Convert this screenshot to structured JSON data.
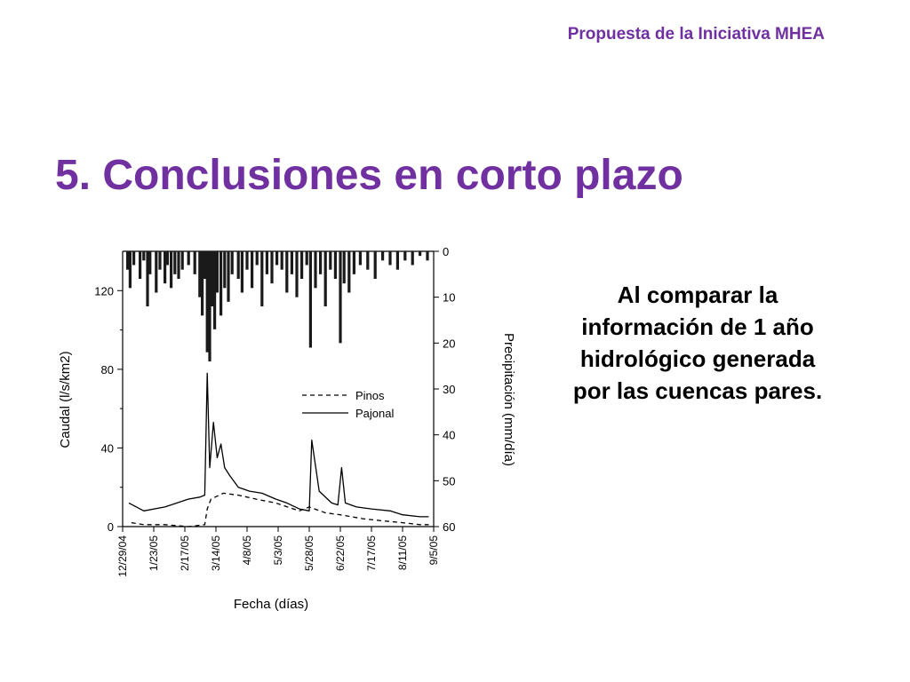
{
  "header": {
    "text": "Propuesta de la Iniciativa MHEA",
    "color": "#7030a0"
  },
  "slide": {
    "title": "5. Conclusiones en corto plazo",
    "body": "Al comparar la información de 1 año hidrológico generada por las cuencas pares."
  },
  "chart_data": {
    "type": "line",
    "xlabel": "Fecha (días)",
    "ylabel": "Caudal (l/s/km2)",
    "y2label": "Precipitación (mm/día)",
    "x_ticks": [
      "12/29/04",
      "1/23/05",
      "2/17/05",
      "3/14/05",
      "4/8/05",
      "5/3/05",
      "5/28/05",
      "6/22/05",
      "7/17/05",
      "8/11/05",
      "9/5/05"
    ],
    "x_range": [
      "2004-12-29",
      "2005-09-05"
    ],
    "ylim": [
      0,
      140
    ],
    "y_ticks": [
      0,
      40,
      80,
      120
    ],
    "y2lim": [
      0,
      60
    ],
    "y2_inverted": true,
    "y2_ticks": [
      0,
      10,
      20,
      30,
      40,
      50,
      60
    ],
    "legend_position": "center-right",
    "series": [
      {
        "name": "Pinos",
        "style": "dashed",
        "x": [
          "2005-01-05",
          "2005-01-15",
          "2005-02-01",
          "2005-02-20",
          "2005-03-05",
          "2005-03-07",
          "2005-03-10",
          "2005-03-20",
          "2005-04-01",
          "2005-04-15",
          "2005-05-01",
          "2005-05-20",
          "2005-05-28",
          "2005-06-10",
          "2005-06-22",
          "2005-07-10",
          "2005-07-25",
          "2005-08-11",
          "2005-08-25",
          "2005-09-01"
        ],
        "y": [
          2,
          1,
          1,
          0,
          1,
          9,
          14,
          17,
          16,
          14,
          12,
          8,
          10,
          7,
          6,
          4,
          3,
          2,
          1,
          1
        ]
      },
      {
        "name": "Pajonal",
        "style": "solid",
        "x": [
          "2005-01-03",
          "2005-01-15",
          "2005-02-01",
          "2005-02-20",
          "2005-03-01",
          "2005-03-05",
          "2005-03-07",
          "2005-03-09",
          "2005-03-12",
          "2005-03-15",
          "2005-03-18",
          "2005-03-21",
          "2005-03-25",
          "2005-04-01",
          "2005-04-10",
          "2005-04-20",
          "2005-05-01",
          "2005-05-10",
          "2005-05-20",
          "2005-05-28",
          "2005-05-30",
          "2005-06-05",
          "2005-06-15",
          "2005-06-20",
          "2005-06-23",
          "2005-06-26",
          "2005-07-05",
          "2005-07-17",
          "2005-08-01",
          "2005-08-11",
          "2005-08-25",
          "2005-09-01"
        ],
        "y": [
          12,
          8,
          10,
          14,
          15,
          16,
          78,
          30,
          53,
          35,
          42,
          30,
          26,
          20,
          18,
          17,
          14,
          12,
          9,
          8,
          44,
          18,
          12,
          11,
          30,
          12,
          10,
          9,
          8,
          6,
          5,
          5
        ]
      }
    ],
    "precipitation": {
      "name": "Precipitación",
      "type": "bar",
      "x": [
        "2005-01-02",
        "2005-01-04",
        "2005-01-07",
        "2005-01-12",
        "2005-01-15",
        "2005-01-18",
        "2005-01-20",
        "2005-01-25",
        "2005-01-28",
        "2005-02-01",
        "2005-02-03",
        "2005-02-06",
        "2005-02-09",
        "2005-02-12",
        "2005-02-15",
        "2005-02-20",
        "2005-02-25",
        "2005-03-01",
        "2005-03-03",
        "2005-03-05",
        "2005-03-07",
        "2005-03-09",
        "2005-03-11",
        "2005-03-13",
        "2005-03-15",
        "2005-03-18",
        "2005-03-21",
        "2005-03-24",
        "2005-03-27",
        "2005-04-01",
        "2005-04-04",
        "2005-04-08",
        "2005-04-12",
        "2005-04-16",
        "2005-04-20",
        "2005-04-24",
        "2005-04-28",
        "2005-05-02",
        "2005-05-06",
        "2005-05-10",
        "2005-05-14",
        "2005-05-18",
        "2005-05-22",
        "2005-05-26",
        "2005-05-29",
        "2005-06-02",
        "2005-06-06",
        "2005-06-10",
        "2005-06-14",
        "2005-06-18",
        "2005-06-22",
        "2005-06-25",
        "2005-06-29",
        "2005-07-03",
        "2005-07-08",
        "2005-07-14",
        "2005-07-20",
        "2005-07-26",
        "2005-08-01",
        "2005-08-07",
        "2005-08-13",
        "2005-08-19",
        "2005-08-25",
        "2005-08-31"
      ],
      "values": [
        4,
        8,
        3,
        6,
        2,
        12,
        5,
        9,
        4,
        7,
        3,
        8,
        5,
        6,
        4,
        3,
        5,
        10,
        14,
        6,
        22,
        24,
        12,
        17,
        9,
        14,
        8,
        11,
        5,
        6,
        9,
        4,
        8,
        3,
        12,
        5,
        7,
        3,
        4,
        9,
        5,
        10,
        6,
        3,
        21,
        8,
        5,
        12,
        4,
        6,
        20,
        7,
        9,
        5,
        3,
        4,
        6,
        2,
        3,
        4,
        2,
        3,
        1,
        2
      ]
    }
  }
}
